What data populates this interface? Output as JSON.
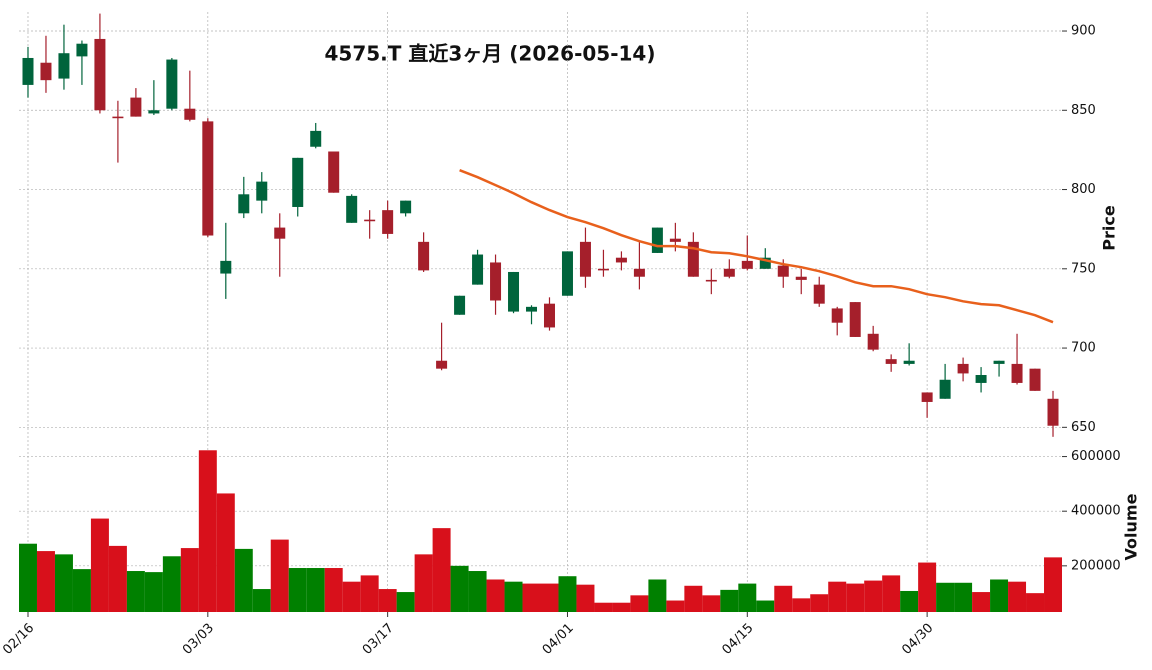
{
  "chart_data": {
    "type": "candlestick",
    "title": "4575.T  直近3ヶ月 (2026-05-14)",
    "ylabel": "Price",
    "categories": [
      "02/16",
      null,
      null,
      null,
      null,
      null,
      null,
      null,
      null,
      null,
      "03/03",
      null,
      null,
      null,
      null,
      null,
      null,
      null,
      null,
      null,
      "03/17",
      null,
      null,
      null,
      null,
      null,
      null,
      null,
      null,
      null,
      "04/01",
      null,
      null,
      null,
      null,
      null,
      null,
      null,
      null,
      null,
      "04/15",
      null,
      null,
      null,
      null,
      null,
      null,
      null,
      null,
      null,
      "04/30",
      null,
      null,
      null,
      null,
      null,
      null,
      null
    ],
    "open": [
      866,
      880,
      870,
      884,
      895,
      846,
      858,
      848,
      851,
      851,
      843,
      747,
      785,
      793,
      776,
      789,
      827,
      824,
      779,
      781,
      787,
      785,
      767,
      692,
      721,
      740,
      754,
      723,
      723,
      728,
      733,
      767,
      750,
      757,
      750,
      760,
      769,
      767,
      743,
      750,
      755,
      750,
      752,
      745,
      740,
      725,
      729,
      709,
      693,
      690,
      672,
      668,
      690,
      678,
      690,
      690,
      687,
      668
    ],
    "high": [
      890,
      897,
      904,
      894,
      911,
      856,
      864,
      869,
      883,
      875,
      845,
      779,
      808,
      811,
      785,
      820,
      842,
      824,
      797,
      787,
      793,
      793,
      773,
      716,
      733,
      762,
      759,
      748,
      727,
      732,
      761,
      776,
      762,
      761,
      767,
      776,
      779,
      773,
      750,
      756,
      771,
      763,
      756,
      750,
      745,
      726,
      729,
      714,
      696,
      703,
      672,
      690,
      694,
      688,
      692,
      709,
      687,
      673
    ],
    "low": [
      858,
      861,
      863,
      866,
      848,
      817,
      846,
      847,
      850,
      843,
      770,
      731,
      782,
      785,
      745,
      783,
      826,
      798,
      779,
      769,
      769,
      783,
      748,
      686,
      721,
      740,
      721,
      722,
      715,
      711,
      733,
      738,
      745,
      749,
      737,
      760,
      761,
      745,
      734,
      744,
      749,
      750,
      738,
      734,
      726,
      708,
      707,
      698,
      685,
      689,
      656,
      668,
      679,
      672,
      682,
      677,
      673,
      644
    ],
    "close": [
      883,
      869,
      886,
      892,
      850,
      845,
      846,
      850,
      882,
      844,
      771,
      755,
      797,
      805,
      769,
      820,
      837,
      798,
      796,
      780,
      772,
      793,
      749,
      687,
      733,
      759,
      730,
      748,
      726,
      713,
      761,
      745,
      749,
      754,
      745,
      776,
      767,
      745,
      742,
      745,
      750,
      757,
      745,
      743,
      728,
      716,
      707,
      699,
      690,
      692,
      666,
      680,
      684,
      683,
      692,
      678,
      673,
      651
    ],
    "up_color": "#00643c",
    "down_color": "#a51f2b",
    "ylim": [
      642,
      912
    ],
    "yticks": [
      650,
      700,
      750,
      800,
      850,
      900
    ],
    "grid": true,
    "ma": {
      "color": "#e8601c",
      "values": [
        null,
        null,
        null,
        null,
        null,
        null,
        null,
        null,
        null,
        null,
        null,
        null,
        null,
        null,
        null,
        null,
        null,
        null,
        null,
        null,
        null,
        null,
        null,
        null,
        812.2,
        807.8,
        802.8,
        797.7,
        792,
        787,
        782.6,
        779.4,
        775.6,
        771.2,
        767.4,
        764.3,
        764.3,
        763,
        760.5,
        759.8,
        757.9,
        755.4,
        752.9,
        751,
        748.5,
        745.3,
        741.5,
        739,
        739,
        737.1,
        734,
        732.1,
        729.5,
        727.7,
        727,
        723.9,
        720.7,
        716.3
      ]
    },
    "volume": {
      "ylabel": "Volume",
      "values": [
        281000,
        254000,
        242000,
        188000,
        373000,
        273000,
        181000,
        177000,
        235000,
        265000,
        623000,
        465000,
        262000,
        115000,
        296000,
        192000,
        192000,
        192000,
        142000,
        165000,
        115000,
        104000,
        242000,
        338000,
        200000,
        181000,
        150000,
        142000,
        135000,
        135000,
        162000,
        131000,
        65000,
        65000,
        92000,
        150000,
        73000,
        127000,
        92000,
        112000,
        135000,
        73000,
        127000,
        81000,
        96000,
        142000,
        135000,
        146000,
        165000,
        108000,
        212000,
        138000,
        138000,
        104000,
        150000,
        142000,
        100000,
        231000
      ],
      "colors": [
        "#008000",
        "#d8101b",
        "#008000",
        "#008000",
        "#d8101b",
        "#d8101b",
        "#008000",
        "#008000",
        "#008000",
        "#d8101b",
        "#d8101b",
        "#d8101b",
        "#008000",
        "#008000",
        "#d8101b",
        "#008000",
        "#008000",
        "#d8101b",
        "#d8101b",
        "#d8101b",
        "#d8101b",
        "#008000",
        "#d8101b",
        "#d8101b",
        "#008000",
        "#008000",
        "#d8101b",
        "#008000",
        "#d8101b",
        "#d8101b",
        "#008000",
        "#d8101b",
        "#d8101b",
        "#d8101b",
        "#d8101b",
        "#008000",
        "#d8101b",
        "#d8101b",
        "#d8101b",
        "#008000",
        "#008000",
        "#008000",
        "#d8101b",
        "#d8101b",
        "#d8101b",
        "#d8101b",
        "#d8101b",
        "#d8101b",
        "#d8101b",
        "#008000",
        "#d8101b",
        "#008000",
        "#008000",
        "#d8101b",
        "#008000",
        "#d8101b",
        "#d8101b",
        "#d8101b"
      ],
      "ylim": [
        31000,
        635000
      ],
      "yticks": [
        200000,
        400000,
        600000
      ]
    }
  }
}
